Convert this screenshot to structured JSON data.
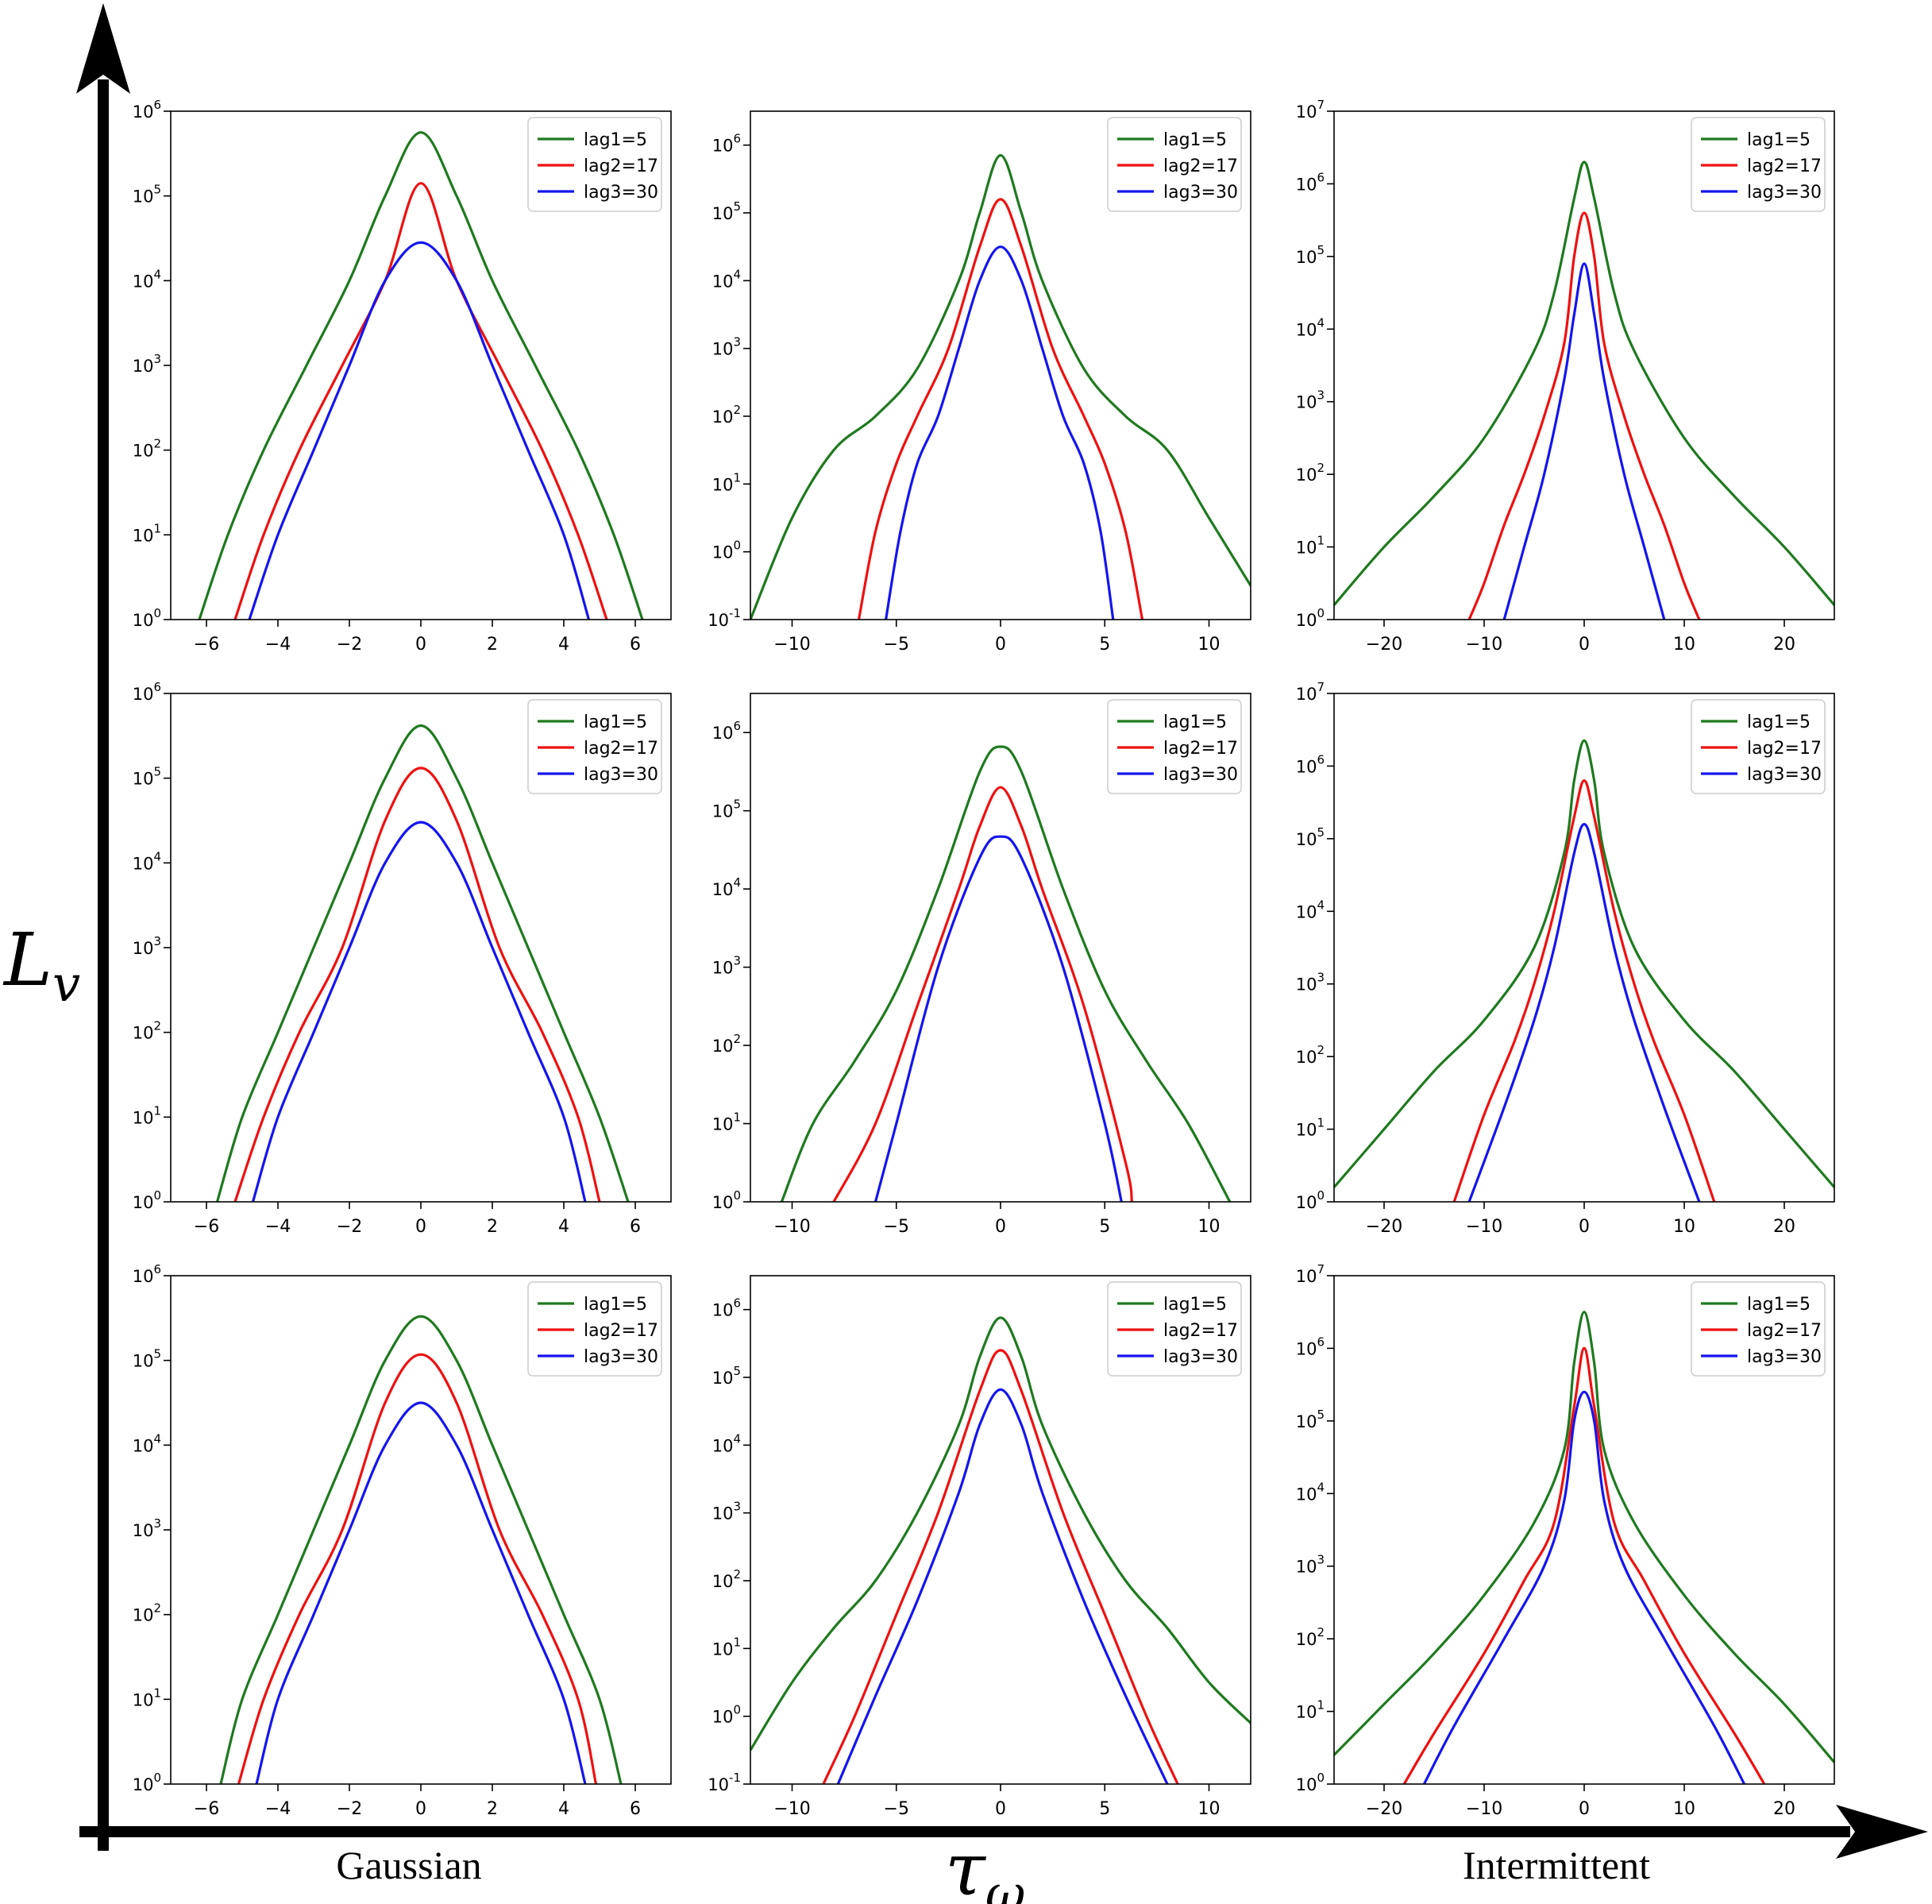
{
  "figure": {
    "y_axis_label": "L",
    "y_axis_label_sub": "v",
    "x_axis_label": "τ",
    "x_axis_label_sub": "ω",
    "bottom_labels": [
      "Gaussian",
      "Intermittent"
    ]
  },
  "colors": {
    "lag1": "#1f7a1f",
    "lag2": "#ee1111",
    "lag3": "#1515ee",
    "axis": "#000000"
  },
  "chart_data": [
    {
      "type": "line",
      "id": "r1c1",
      "row": 0,
      "col": 0,
      "yscale": "log",
      "xlim": [
        -7,
        7
      ],
      "ylim": [
        0,
        6
      ],
      "xticks": [
        -6,
        -4,
        -2,
        0,
        2,
        4,
        6
      ],
      "yticks": [
        0,
        1,
        2,
        3,
        4,
        5,
        6
      ],
      "series": [
        {
          "name": "lag1=5",
          "x": [
            -6.2,
            -5.4,
            -4.4,
            -3.2,
            -2,
            -1,
            0,
            1,
            2,
            3.2,
            4.4,
            5.4,
            6.2
          ],
          "y": [
            0,
            1,
            2,
            3,
            4,
            5,
            5.75,
            5,
            4,
            3,
            2,
            1,
            0
          ]
        },
        {
          "name": "lag2=17",
          "x": [
            -5.2,
            -4.4,
            -3.4,
            -2.2,
            -1,
            0,
            1,
            2.2,
            3.4,
            4.4,
            5.2
          ],
          "y": [
            0,
            1,
            2,
            3,
            4,
            5.15,
            4,
            3,
            2,
            1,
            0
          ]
        },
        {
          "name": "lag3=30",
          "x": [
            -4.8,
            -4,
            -3,
            -2,
            -1,
            0,
            1,
            2,
            3,
            4,
            4.7
          ],
          "y": [
            0,
            1,
            2,
            3,
            4,
            4.45,
            4,
            3,
            2,
            1,
            0
          ]
        }
      ]
    },
    {
      "type": "line",
      "id": "r1c2",
      "row": 0,
      "col": 1,
      "yscale": "log",
      "xlim": [
        -12,
        12
      ],
      "ylim": [
        -1,
        6.5
      ],
      "xticks": [
        -10,
        -5,
        0,
        5,
        10
      ],
      "yticks": [
        -1,
        0,
        1,
        2,
        3,
        4,
        5,
        6
      ],
      "series": [
        {
          "name": "lag1=5",
          "x": [
            -12,
            -10,
            -8,
            -6,
            -4,
            -2,
            -1,
            0,
            1,
            2,
            4,
            6,
            8,
            10,
            12
          ],
          "y": [
            -1,
            0.5,
            1.5,
            2,
            2.7,
            4,
            5,
            5.85,
            5,
            4,
            2.7,
            2,
            1.5,
            0.5,
            -0.5
          ]
        },
        {
          "name": "lag2=17",
          "x": [
            -6.8,
            -6,
            -5,
            -4,
            -2.5,
            -1,
            0,
            1,
            2.5,
            4,
            5,
            6,
            6.8
          ],
          "y": [
            -1,
            0.3,
            1.3,
            2,
            3,
            4.5,
            5.2,
            4.5,
            3,
            2,
            1.3,
            0.3,
            -1
          ]
        },
        {
          "name": "lag3=30",
          "x": [
            -5.5,
            -4.8,
            -4,
            -3,
            -2,
            -1,
            0,
            1,
            2,
            3,
            4,
            4.8,
            5.4
          ],
          "y": [
            -1,
            0.3,
            1.3,
            2,
            3,
            4,
            4.5,
            4,
            3,
            2,
            1.3,
            0.3,
            -1
          ]
        }
      ]
    },
    {
      "type": "line",
      "id": "r1c3",
      "row": 0,
      "col": 2,
      "yscale": "log",
      "xlim": [
        -25,
        25
      ],
      "ylim": [
        0,
        7
      ],
      "xticks": [
        -20,
        -10,
        0,
        10,
        20
      ],
      "yticks": [
        0,
        1,
        2,
        3,
        4,
        5,
        6,
        7
      ],
      "series": [
        {
          "name": "lag1=5",
          "x": [
            -25,
            -20,
            -15,
            -10,
            -5,
            -3,
            -1,
            0,
            1,
            3,
            5,
            10,
            15,
            20,
            25
          ],
          "y": [
            0.2,
            1,
            1.7,
            2.5,
            3.7,
            4.5,
            5.8,
            6.3,
            5.8,
            4.5,
            3.7,
            2.5,
            1.7,
            1,
            0.2
          ]
        },
        {
          "name": "lag2=17",
          "x": [
            -11.5,
            -10,
            -8,
            -6,
            -4,
            -2,
            -1,
            0,
            1,
            2,
            4,
            6,
            8,
            10,
            11.5
          ],
          "y": [
            0,
            0.5,
            1.3,
            2,
            2.8,
            3.8,
            5,
            5.6,
            5,
            3.8,
            2.8,
            2,
            1.3,
            0.5,
            0
          ]
        },
        {
          "name": "lag3=30",
          "x": [
            -8,
            -6,
            -4,
            -2,
            -1,
            0,
            1,
            2,
            4,
            6,
            8
          ],
          "y": [
            0,
            1,
            2,
            3.3,
            4.2,
            4.9,
            4.2,
            3.3,
            2,
            1,
            0
          ]
        }
      ]
    },
    {
      "type": "line",
      "id": "r2c1",
      "row": 1,
      "col": 0,
      "yscale": "log",
      "xlim": [
        -7,
        7
      ],
      "ylim": [
        0,
        6
      ],
      "xticks": [
        -6,
        -4,
        -2,
        0,
        2,
        4,
        6
      ],
      "yticks": [
        0,
        1,
        2,
        3,
        4,
        5,
        6
      ],
      "series": [
        {
          "name": "lag1=5",
          "x": [
            -5.7,
            -5,
            -4,
            -3,
            -2,
            -1,
            0,
            1,
            2,
            3,
            4,
            5,
            5.8
          ],
          "y": [
            0,
            1,
            2,
            3,
            4,
            5,
            5.62,
            5,
            4,
            3,
            2,
            1,
            0
          ]
        },
        {
          "name": "lag2=17",
          "x": [
            -5.2,
            -4.4,
            -3.4,
            -2.2,
            -1,
            0,
            1,
            2.2,
            3.4,
            4.4,
            5
          ],
          "y": [
            0,
            1,
            2,
            3,
            4.5,
            5.12,
            4.5,
            3,
            2,
            1,
            0
          ]
        },
        {
          "name": "lag3=30",
          "x": [
            -4.7,
            -4,
            -3,
            -2,
            -1,
            0,
            1,
            2,
            3,
            4,
            4.6
          ],
          "y": [
            0,
            1,
            2,
            3,
            4,
            4.48,
            4,
            3,
            2,
            1,
            0
          ]
        }
      ]
    },
    {
      "type": "line",
      "id": "r2c2",
      "row": 1,
      "col": 1,
      "yscale": "log",
      "xlim": [
        -12,
        12
      ],
      "ylim": [
        0,
        6.5
      ],
      "xticks": [
        -10,
        -5,
        0,
        5,
        10
      ],
      "yticks": [
        0,
        1,
        2,
        3,
        4,
        5,
        6
      ],
      "series": [
        {
          "name": "lag1=5",
          "x": [
            -10.5,
            -9,
            -7,
            -5,
            -3,
            -1,
            0,
            1,
            3,
            5,
            7,
            9,
            11
          ],
          "y": [
            0,
            1,
            1.8,
            2.7,
            4,
            5.5,
            5.82,
            5.5,
            4,
            2.7,
            1.8,
            1,
            0
          ]
        },
        {
          "name": "lag2=17",
          "x": [
            -8,
            -6,
            -4,
            -2,
            -1,
            0,
            1,
            2,
            4,
            6,
            6.3
          ],
          "y": [
            0,
            1,
            2.5,
            4,
            4.8,
            5.3,
            4.8,
            4,
            2.5,
            0.5,
            0
          ]
        },
        {
          "name": "lag3=30",
          "x": [
            -6,
            -5,
            -3,
            -1,
            0,
            1,
            3,
            5,
            5.8
          ],
          "y": [
            0,
            1,
            3,
            4.4,
            4.67,
            4.4,
            3,
            1,
            0
          ]
        }
      ]
    },
    {
      "type": "line",
      "id": "r2c3",
      "row": 1,
      "col": 2,
      "yscale": "log",
      "xlim": [
        -25,
        25
      ],
      "ylim": [
        0,
        7
      ],
      "xticks": [
        -20,
        -10,
        0,
        10,
        20
      ],
      "yticks": [
        0,
        1,
        2,
        3,
        4,
        5,
        6,
        7
      ],
      "series": [
        {
          "name": "lag1=5",
          "x": [
            -25,
            -20,
            -15,
            -10,
            -5,
            -2,
            -1,
            0,
            1,
            2,
            5,
            10,
            15,
            20,
            25
          ],
          "y": [
            0.2,
            1,
            1.8,
            2.5,
            3.5,
            4.8,
            5.8,
            6.35,
            5.8,
            4.8,
            3.5,
            2.5,
            1.8,
            1,
            0.2
          ]
        },
        {
          "name": "lag2=17",
          "x": [
            -13,
            -10,
            -7,
            -5,
            -3,
            -1,
            0,
            1,
            3,
            5,
            7,
            10,
            13
          ],
          "y": [
            0,
            1.2,
            2.2,
            3,
            4,
            5.3,
            5.8,
            5.3,
            4,
            3,
            2.2,
            1.2,
            0
          ]
        },
        {
          "name": "lag3=30",
          "x": [
            -11.5,
            -8,
            -5,
            -3,
            -1,
            0,
            1,
            3,
            5,
            8,
            11.5
          ],
          "y": [
            0,
            1.3,
            2.5,
            3.5,
            4.8,
            5.2,
            4.8,
            3.5,
            2.5,
            1.3,
            0
          ]
        }
      ]
    },
    {
      "type": "line",
      "id": "r3c1",
      "row": 2,
      "col": 0,
      "yscale": "log",
      "xlim": [
        -7,
        7
      ],
      "ylim": [
        0,
        6
      ],
      "xticks": [
        -6,
        -4,
        -2,
        0,
        2,
        4,
        6
      ],
      "yticks": [
        0,
        1,
        2,
        3,
        4,
        5,
        6
      ],
      "series": [
        {
          "name": "lag1=5",
          "x": [
            -5.6,
            -5,
            -4,
            -3,
            -2,
            -1,
            0,
            1,
            2,
            3,
            4,
            5,
            5.6
          ],
          "y": [
            0,
            1,
            2,
            3,
            4,
            5,
            5.52,
            5,
            4,
            3,
            2,
            1,
            0
          ]
        },
        {
          "name": "lag2=17",
          "x": [
            -5.1,
            -4.4,
            -3.4,
            -2.2,
            -1,
            0,
            1,
            2.2,
            3.4,
            4.4,
            4.9
          ],
          "y": [
            0,
            1,
            2,
            3,
            4.5,
            5.07,
            4.5,
            3,
            2,
            1,
            0
          ]
        },
        {
          "name": "lag3=30",
          "x": [
            -4.6,
            -4,
            -3,
            -2,
            -1,
            0,
            1,
            2,
            3,
            4,
            4.6
          ],
          "y": [
            0,
            1,
            2,
            3,
            4,
            4.5,
            4,
            3,
            2,
            1,
            0
          ]
        }
      ]
    },
    {
      "type": "line",
      "id": "r3c2",
      "row": 2,
      "col": 1,
      "yscale": "log",
      "xlim": [
        -12,
        12
      ],
      "ylim": [
        -1,
        6.5
      ],
      "xticks": [
        -10,
        -5,
        0,
        5,
        10
      ],
      "yticks": [
        -1,
        0,
        1,
        2,
        3,
        4,
        5,
        6
      ],
      "series": [
        {
          "name": "lag1=5",
          "x": [
            -12,
            -10,
            -8,
            -6,
            -4,
            -2,
            -1,
            0,
            1,
            2,
            4,
            6,
            8,
            10,
            12
          ],
          "y": [
            -0.5,
            0.5,
            1.3,
            2,
            3,
            4.3,
            5.3,
            5.88,
            5.3,
            4.3,
            3,
            2,
            1.3,
            0.5,
            -0.1
          ]
        },
        {
          "name": "lag2=17",
          "x": [
            -8.5,
            -7,
            -5,
            -3,
            -1,
            0,
            1,
            3,
            5,
            7,
            8.5
          ],
          "y": [
            -1,
            0,
            1.5,
            3,
            4.8,
            5.4,
            4.8,
            3,
            1.5,
            0,
            -1
          ]
        },
        {
          "name": "lag3=30",
          "x": [
            -7.8,
            -6,
            -4,
            -2,
            -1,
            0,
            1,
            2,
            4,
            6,
            8
          ],
          "y": [
            -1,
            0.3,
            1.7,
            3.3,
            4.3,
            4.82,
            4.3,
            3.3,
            1.7,
            0.3,
            -1
          ]
        }
      ]
    },
    {
      "type": "line",
      "id": "r3c3",
      "row": 2,
      "col": 2,
      "yscale": "log",
      "xlim": [
        -25,
        25
      ],
      "ylim": [
        0,
        7
      ],
      "xticks": [
        -20,
        -10,
        0,
        10,
        20
      ],
      "yticks": [
        0,
        1,
        2,
        3,
        4,
        5,
        6,
        7
      ],
      "series": [
        {
          "name": "lag1=5",
          "x": [
            -25,
            -20,
            -15,
            -10,
            -5,
            -2,
            -1,
            0,
            1,
            2,
            5,
            10,
            15,
            20,
            25
          ],
          "y": [
            0.4,
            1.1,
            1.8,
            2.6,
            3.6,
            4.6,
            5.8,
            6.5,
            5.8,
            4.6,
            3.6,
            2.6,
            1.8,
            1.1,
            0.3
          ]
        },
        {
          "name": "lag2=17",
          "x": [
            -18,
            -15,
            -10,
            -6,
            -3,
            -1,
            0,
            1,
            3,
            6,
            10,
            15,
            18
          ],
          "y": [
            0,
            0.7,
            1.8,
            2.8,
            3.6,
            5.2,
            6,
            5.2,
            3.6,
            2.8,
            1.8,
            0.7,
            0
          ]
        },
        {
          "name": "lag3=30",
          "x": [
            -16,
            -13,
            -8,
            -4,
            -2,
            -1,
            0,
            1,
            2,
            4,
            8,
            13,
            16
          ],
          "y": [
            0,
            0.8,
            2,
            3,
            3.9,
            5,
            5.4,
            5,
            3.9,
            3,
            2,
            0.8,
            0
          ]
        }
      ]
    }
  ]
}
